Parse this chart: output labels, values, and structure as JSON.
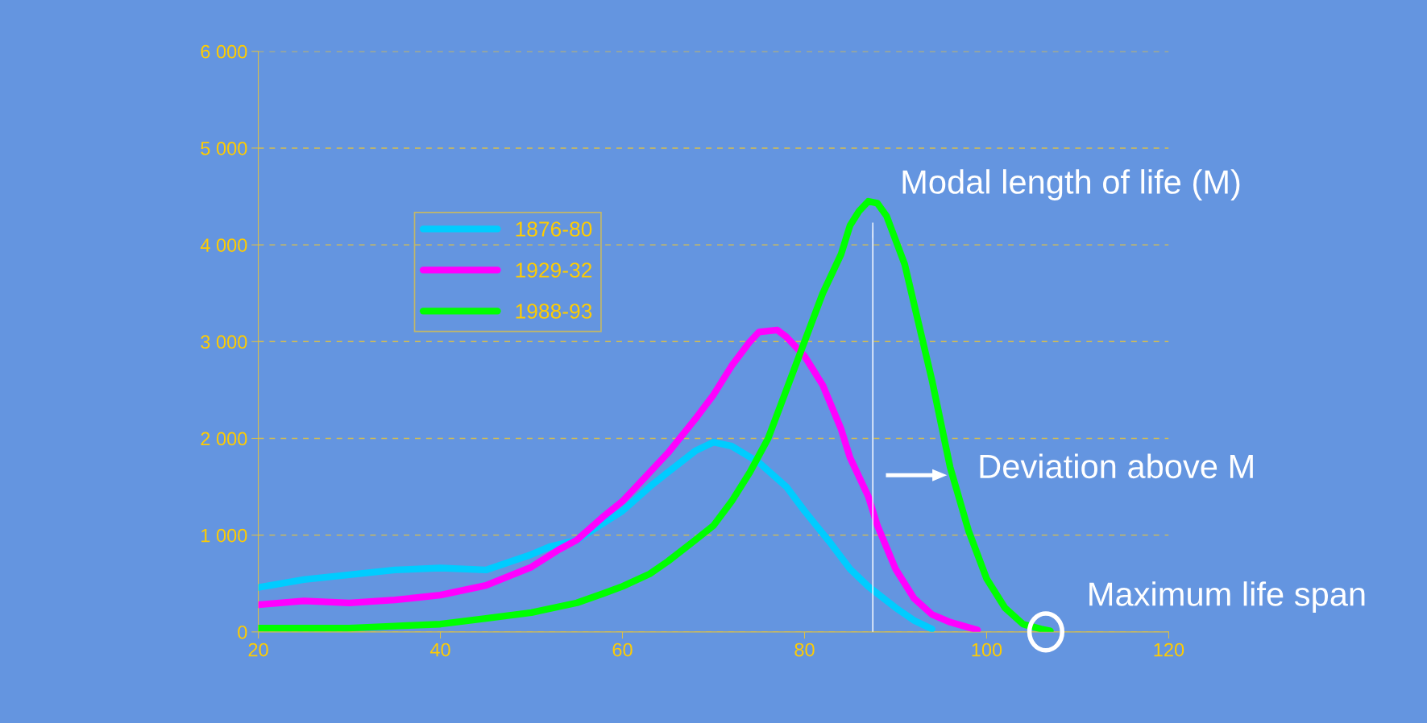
{
  "chart_data": {
    "type": "line",
    "xlim": [
      20,
      120
    ],
    "xticks": [
      20,
      40,
      60,
      80,
      100,
      120
    ],
    "ylim": [
      0,
      6000
    ],
    "yticks": [
      0,
      {
        "value": 1000,
        "label": "1 000"
      },
      {
        "value": 2000,
        "label": "2 000"
      },
      {
        "value": 3000,
        "label": "3 000"
      },
      {
        "value": 4000,
        "label": "4 000"
      },
      {
        "value": 5000,
        "label": "5 000"
      },
      {
        "value": 6000,
        "label": "6 000"
      }
    ],
    "grid": "y",
    "legend": "left",
    "line_style": "solid",
    "marker": "none",
    "series": [
      {
        "name": "1876-80",
        "color": "#00ccff",
        "x": [
          20,
          25,
          30,
          35,
          40,
          45,
          50,
          52,
          55,
          60,
          63,
          65,
          68,
          70,
          72,
          75,
          78,
          80,
          83,
          85,
          87,
          90,
          92,
          94
        ],
        "values": [
          460,
          540,
          590,
          640,
          660,
          640,
          800,
          880,
          950,
          1250,
          1500,
          1650,
          1870,
          1960,
          1920,
          1750,
          1500,
          1250,
          900,
          650,
          470,
          250,
          120,
          30
        ]
      },
      {
        "name": "1929-32",
        "color": "#ff00ff",
        "x": [
          20,
          25,
          30,
          35,
          40,
          45,
          50,
          53,
          55,
          58,
          60,
          63,
          65,
          68,
          70,
          72,
          74,
          75,
          77,
          78,
          80,
          82,
          84,
          85,
          87,
          88,
          90,
          92,
          94,
          96,
          99
        ],
        "values": [
          280,
          320,
          300,
          330,
          380,
          480,
          670,
          850,
          950,
          1200,
          1350,
          1650,
          1850,
          2200,
          2450,
          2750,
          3000,
          3100,
          3120,
          3050,
          2850,
          2550,
          2100,
          1800,
          1400,
          1100,
          650,
          350,
          180,
          100,
          20
        ]
      },
      {
        "name": "1988-93",
        "color": "#00ff00",
        "x": [
          20,
          25,
          30,
          35,
          40,
          45,
          50,
          55,
          58,
          60,
          63,
          65,
          68,
          70,
          72,
          74,
          76,
          78,
          80,
          82,
          84,
          85,
          86,
          87,
          88,
          89,
          90,
          91,
          92,
          94,
          96,
          98,
          100,
          102,
          104,
          106,
          107
        ],
        "values": [
          40,
          40,
          40,
          60,
          80,
          140,
          200,
          300,
          400,
          470,
          600,
          730,
          950,
          1100,
          1350,
          1650,
          2000,
          2500,
          3000,
          3500,
          3900,
          4200,
          4350,
          4450,
          4430,
          4300,
          4050,
          3800,
          3400,
          2600,
          1700,
          1050,
          550,
          250,
          80,
          30,
          10
        ]
      }
    ],
    "annotations": [
      "Modal length of life (M)",
      "Deviation above M",
      {
        "text": "Maximum life span",
        "x": 106.5,
        "y": 0
      }
    ]
  }
}
